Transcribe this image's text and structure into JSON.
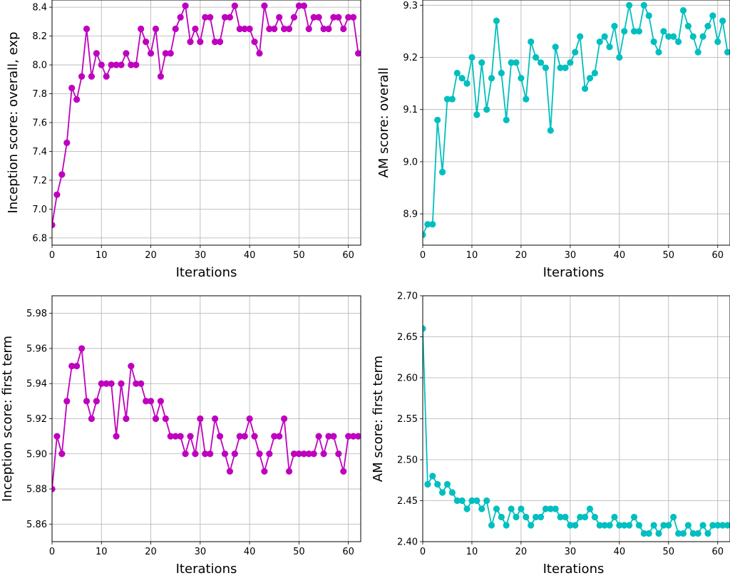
{
  "chart_data": [
    {
      "type": "line",
      "xlabel": "Iterations",
      "ylabel": "Inception score: overall, exp",
      "xlim": [
        0,
        62.5
      ],
      "ylim": [
        6.75,
        8.45
      ],
      "xticks": [
        0,
        10,
        20,
        30,
        40,
        50,
        60
      ],
      "yticks": [
        6.8,
        7.0,
        7.2,
        7.4,
        7.6,
        7.8,
        8.0,
        8.2,
        8.4
      ],
      "ytick_decimals": 1,
      "grid": true,
      "color": "#bf00bf",
      "series": [
        {
          "x": [
            0,
            1,
            2,
            3,
            4,
            5,
            6,
            7,
            8,
            9,
            10,
            11,
            12,
            13,
            14,
            15,
            16,
            17,
            18,
            19,
            20,
            21,
            22,
            23,
            24,
            25,
            26,
            27,
            28,
            29,
            30,
            31,
            32,
            33,
            34,
            35,
            36,
            37,
            38,
            39,
            40,
            41,
            42,
            43,
            44,
            45,
            46,
            47,
            48,
            49,
            50,
            51,
            52,
            53,
            54,
            55,
            56,
            57,
            58,
            59,
            60,
            61,
            62
          ],
          "y": [
            6.89,
            7.1,
            7.24,
            7.46,
            7.84,
            7.76,
            7.92,
            8.25,
            7.92,
            8.08,
            8.0,
            7.92,
            8.0,
            8.0,
            8.0,
            8.08,
            8.0,
            8.0,
            8.25,
            8.16,
            8.08,
            8.25,
            7.92,
            8.08,
            8.08,
            8.25,
            8.33,
            8.41,
            8.16,
            8.25,
            8.16,
            8.33,
            8.33,
            8.16,
            8.16,
            8.33,
            8.33,
            8.41,
            8.25,
            8.25,
            8.25,
            8.16,
            8.08,
            8.41,
            8.25,
            8.25,
            8.33,
            8.25,
            8.25,
            8.33,
            8.41,
            8.41,
            8.25,
            8.33,
            8.33,
            8.25,
            8.25,
            8.33,
            8.33,
            8.25,
            8.33,
            8.33,
            8.08
          ]
        }
      ]
    },
    {
      "type": "line",
      "xlabel": "Iterations",
      "ylabel": "AM score: overall",
      "xlim": [
        0,
        62.5
      ],
      "ylim": [
        8.84,
        9.31
      ],
      "xticks": [
        0,
        10,
        20,
        30,
        40,
        50,
        60
      ],
      "yticks": [
        8.9,
        9.0,
        9.1,
        9.2,
        9.3
      ],
      "ytick_decimals": 1,
      "grid": true,
      "color": "#00bfbf",
      "series": [
        {
          "x": [
            0,
            1,
            2,
            3,
            4,
            5,
            6,
            7,
            8,
            9,
            10,
            11,
            12,
            13,
            14,
            15,
            16,
            17,
            18,
            19,
            20,
            21,
            22,
            23,
            24,
            25,
            26,
            27,
            28,
            29,
            30,
            31,
            32,
            33,
            34,
            35,
            36,
            37,
            38,
            39,
            40,
            41,
            42,
            43,
            44,
            45,
            46,
            47,
            48,
            49,
            50,
            51,
            52,
            53,
            54,
            55,
            56,
            57,
            58,
            59,
            60,
            61,
            62
          ],
          "y": [
            8.86,
            8.88,
            8.88,
            9.08,
            8.98,
            9.12,
            9.12,
            9.17,
            9.16,
            9.15,
            9.2,
            9.09,
            9.19,
            9.1,
            9.16,
            9.27,
            9.17,
            9.08,
            9.19,
            9.19,
            9.16,
            9.12,
            9.23,
            9.2,
            9.19,
            9.18,
            9.06,
            9.22,
            9.18,
            9.18,
            9.19,
            9.21,
            9.24,
            9.14,
            9.16,
            9.17,
            9.23,
            9.24,
            9.22,
            9.26,
            9.2,
            9.25,
            9.3,
            9.25,
            9.25,
            9.3,
            9.28,
            9.23,
            9.21,
            9.25,
            9.24,
            9.24,
            9.23,
            9.29,
            9.26,
            9.24,
            9.21,
            9.24,
            9.26,
            9.28,
            9.23,
            9.27,
            9.21
          ]
        }
      ]
    },
    {
      "type": "line",
      "xlabel": "Iterations",
      "ylabel": "Inception score: first term",
      "xlim": [
        0,
        62.5
      ],
      "ylim": [
        5.85,
        5.99
      ],
      "xticks": [
        0,
        10,
        20,
        30,
        40,
        50,
        60
      ],
      "yticks": [
        5.86,
        5.88,
        5.9,
        5.92,
        5.94,
        5.96,
        5.98
      ],
      "ytick_decimals": 2,
      "grid": true,
      "color": "#bf00bf",
      "series": [
        {
          "x": [
            0,
            1,
            2,
            3,
            4,
            5,
            6,
            7,
            8,
            9,
            10,
            11,
            12,
            13,
            14,
            15,
            16,
            17,
            18,
            19,
            20,
            21,
            22,
            23,
            24,
            25,
            26,
            27,
            28,
            29,
            30,
            31,
            32,
            33,
            34,
            35,
            36,
            37,
            38,
            39,
            40,
            41,
            42,
            43,
            44,
            45,
            46,
            47,
            48,
            49,
            50,
            51,
            52,
            53,
            54,
            55,
            56,
            57,
            58,
            59,
            60,
            61,
            62
          ],
          "y": [
            5.88,
            5.91,
            5.9,
            5.93,
            5.95,
            5.95,
            5.96,
            5.93,
            5.92,
            5.93,
            5.94,
            5.94,
            5.94,
            5.91,
            5.94,
            5.92,
            5.95,
            5.94,
            5.94,
            5.93,
            5.93,
            5.92,
            5.93,
            5.92,
            5.91,
            5.91,
            5.91,
            5.9,
            5.91,
            5.9,
            5.92,
            5.9,
            5.9,
            5.92,
            5.91,
            5.9,
            5.89,
            5.9,
            5.91,
            5.91,
            5.92,
            5.91,
            5.9,
            5.89,
            5.9,
            5.91,
            5.91,
            5.92,
            5.89,
            5.9,
            5.9,
            5.9,
            5.9,
            5.9,
            5.91,
            5.9,
            5.91,
            5.91,
            5.9,
            5.89,
            5.91,
            5.91,
            5.91
          ]
        }
      ]
    },
    {
      "type": "line",
      "xlabel": "Iterations",
      "ylabel": "AM score: first term",
      "xlim": [
        0,
        62.5
      ],
      "ylim": [
        2.4,
        2.7
      ],
      "xticks": [
        0,
        10,
        20,
        30,
        40,
        50,
        60
      ],
      "yticks": [
        2.4,
        2.45,
        2.5,
        2.55,
        2.6,
        2.65,
        2.7
      ],
      "ytick_decimals": 2,
      "grid": true,
      "color": "#00bfbf",
      "series": [
        {
          "x": [
            0,
            1,
            2,
            3,
            4,
            5,
            6,
            7,
            8,
            9,
            10,
            11,
            12,
            13,
            14,
            15,
            16,
            17,
            18,
            19,
            20,
            21,
            22,
            23,
            24,
            25,
            26,
            27,
            28,
            29,
            30,
            31,
            32,
            33,
            34,
            35,
            36,
            37,
            38,
            39,
            40,
            41,
            42,
            43,
            44,
            45,
            46,
            47,
            48,
            49,
            50,
            51,
            52,
            53,
            54,
            55,
            56,
            57,
            58,
            59,
            60,
            61,
            62
          ],
          "y": [
            2.66,
            2.47,
            2.48,
            2.47,
            2.46,
            2.47,
            2.46,
            2.45,
            2.45,
            2.44,
            2.45,
            2.45,
            2.44,
            2.45,
            2.42,
            2.44,
            2.43,
            2.42,
            2.44,
            2.43,
            2.44,
            2.43,
            2.42,
            2.43,
            2.43,
            2.44,
            2.44,
            2.44,
            2.43,
            2.43,
            2.42,
            2.42,
            2.43,
            2.43,
            2.44,
            2.43,
            2.42,
            2.42,
            2.42,
            2.43,
            2.42,
            2.42,
            2.42,
            2.43,
            2.42,
            2.41,
            2.41,
            2.42,
            2.41,
            2.42,
            2.42,
            2.43,
            2.41,
            2.41,
            2.42,
            2.41,
            2.41,
            2.42,
            2.41,
            2.42,
            2.42,
            2.42,
            2.42
          ]
        }
      ]
    }
  ]
}
